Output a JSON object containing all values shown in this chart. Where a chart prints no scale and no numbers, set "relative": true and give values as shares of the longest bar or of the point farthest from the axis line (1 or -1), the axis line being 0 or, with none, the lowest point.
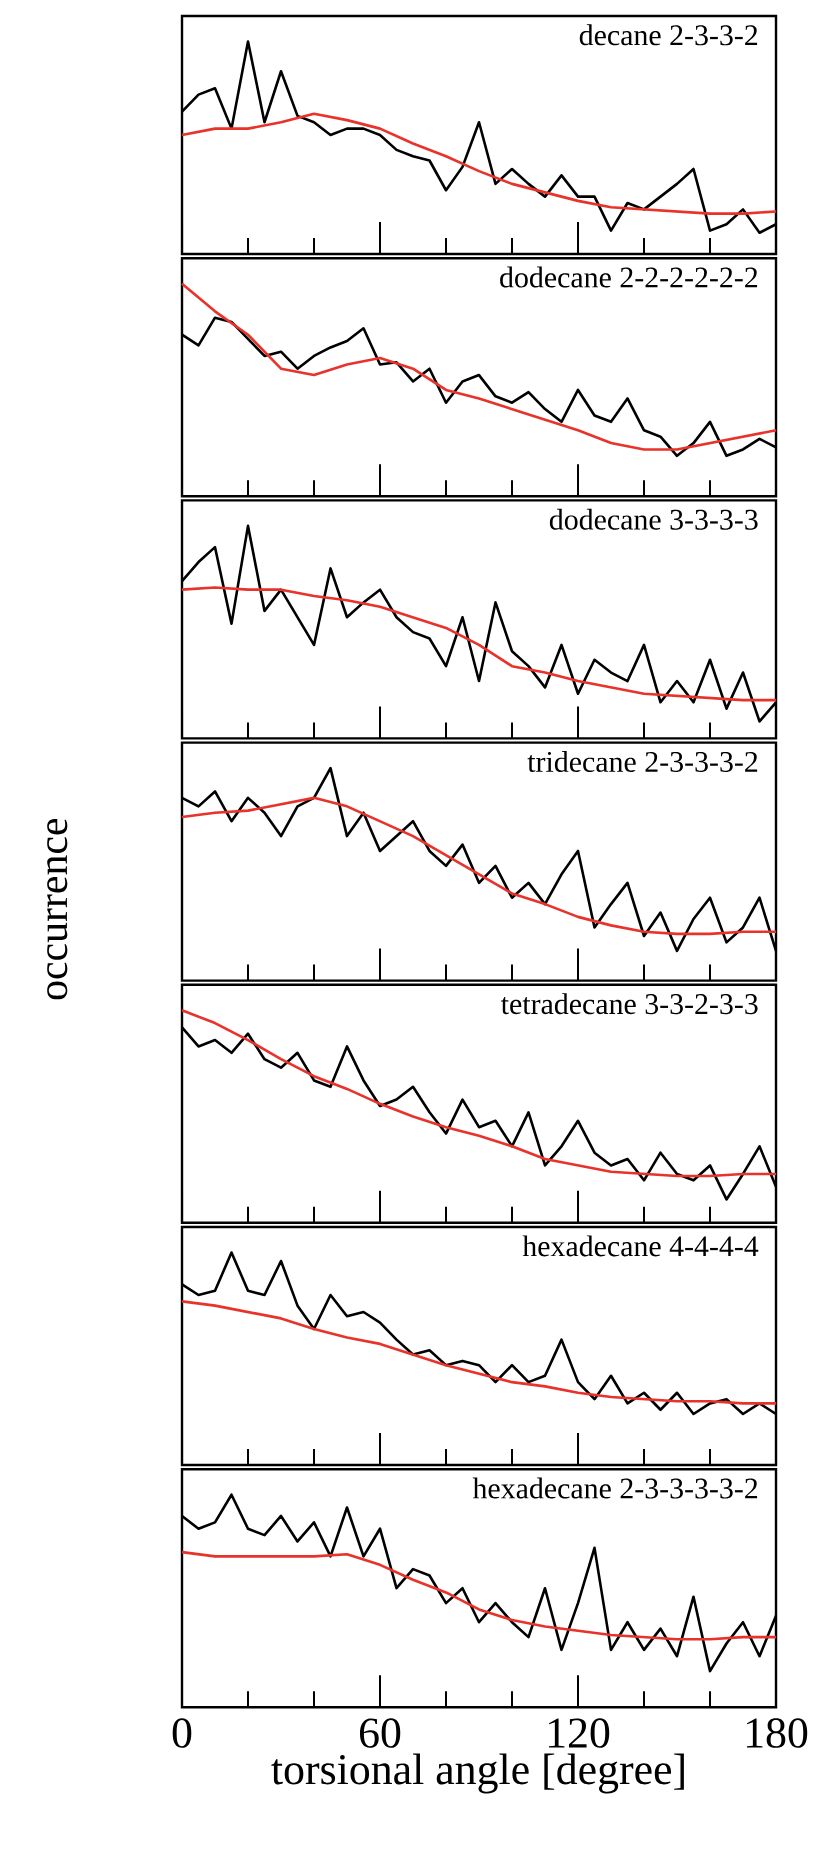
{
  "chart_data": [
    {
      "type": "line",
      "title": "decane 2-3-3-2",
      "relative": true,
      "xlim": [
        0,
        180
      ],
      "xticks": [
        0,
        {
          "value": 20,
          "label": null
        },
        {
          "value": 40,
          "label": null
        },
        60,
        {
          "value": 80,
          "label": null
        },
        {
          "value": 100,
          "label": null
        },
        120,
        {
          "value": 140,
          "label": null
        },
        {
          "value": 160,
          "label": null
        },
        180
      ],
      "tick_labels": false,
      "series": [
        {
          "color": "#000000",
          "x": [
            0,
            5,
            10,
            15,
            20,
            25,
            30,
            35,
            40,
            45,
            50,
            55,
            60,
            65,
            70,
            75,
            80,
            85,
            90,
            95,
            100,
            105,
            110,
            115,
            120,
            125,
            130,
            135,
            140,
            145,
            150,
            155,
            160,
            165,
            170,
            175,
            180
          ],
          "values": [
            0.67,
            0.75,
            0.78,
            0.59,
            1,
            0.62,
            0.86,
            0.65,
            0.62,
            0.56,
            0.59,
            0.59,
            0.56,
            0.49,
            0.46,
            0.44,
            0.3,
            0.41,
            0.62,
            0.33,
            0.4,
            0.33,
            0.27,
            0.37,
            0.27,
            0.27,
            0.11,
            0.24,
            0.21,
            0.27,
            0.33,
            0.4,
            0.11,
            0.14,
            0.21,
            0.1,
            0.14
          ]
        },
        {
          "color": "#e8322a",
          "x": [
            0,
            10,
            20,
            30,
            40,
            50,
            60,
            70,
            80,
            90,
            100,
            110,
            120,
            130,
            140,
            150,
            160,
            170,
            180
          ],
          "values": [
            0.56,
            0.59,
            0.59,
            0.62,
            0.66,
            0.63,
            0.59,
            0.52,
            0.46,
            0.39,
            0.33,
            0.29,
            0.25,
            0.22,
            0.21,
            0.2,
            0.19,
            0.19,
            0.2
          ]
        }
      ]
    },
    {
      "type": "line",
      "title": "dodecane 2-2-2-2-2-2",
      "relative": true,
      "xlim": [
        0,
        180
      ],
      "xticks": [
        0,
        {
          "value": 20,
          "label": null
        },
        {
          "value": 40,
          "label": null
        },
        60,
        {
          "value": 80,
          "label": null
        },
        {
          "value": 100,
          "label": null
        },
        120,
        {
          "value": 140,
          "label": null
        },
        {
          "value": 160,
          "label": null
        },
        180
      ],
      "tick_labels": false,
      "series": [
        {
          "color": "#000000",
          "x": [
            0,
            5,
            10,
            15,
            20,
            25,
            30,
            35,
            40,
            45,
            50,
            55,
            60,
            65,
            70,
            75,
            80,
            85,
            90,
            95,
            100,
            105,
            110,
            115,
            120,
            125,
            130,
            135,
            140,
            145,
            150,
            155,
            160,
            165,
            170,
            175,
            180
          ],
          "values": [
            0.76,
            0.71,
            0.84,
            0.82,
            0.74,
            0.66,
            0.68,
            0.6,
            0.66,
            0.7,
            0.73,
            0.79,
            0.62,
            0.63,
            0.54,
            0.6,
            0.44,
            0.54,
            0.57,
            0.47,
            0.44,
            0.49,
            0.41,
            0.35,
            0.5,
            0.38,
            0.35,
            0.46,
            0.31,
            0.28,
            0.19,
            0.25,
            0.35,
            0.19,
            0.22,
            0.27,
            0.23
          ]
        },
        {
          "color": "#e8322a",
          "x": [
            0,
            10,
            20,
            30,
            40,
            50,
            60,
            70,
            80,
            90,
            100,
            110,
            120,
            130,
            140,
            150,
            160,
            170,
            180
          ],
          "values": [
            1,
            0.87,
            0.76,
            0.6,
            0.57,
            0.62,
            0.65,
            0.6,
            0.5,
            0.46,
            0.41,
            0.36,
            0.31,
            0.25,
            0.22,
            0.22,
            0.25,
            0.28,
            0.31
          ]
        }
      ]
    },
    {
      "type": "line",
      "title": "dodecane 3-3-3-3",
      "relative": true,
      "xlim": [
        0,
        180
      ],
      "xticks": [
        0,
        {
          "value": 20,
          "label": null
        },
        {
          "value": 40,
          "label": null
        },
        60,
        {
          "value": 80,
          "label": null
        },
        {
          "value": 100,
          "label": null
        },
        120,
        {
          "value": 140,
          "label": null
        },
        {
          "value": 160,
          "label": null
        },
        180
      ],
      "tick_labels": false,
      "series": [
        {
          "color": "#000000",
          "x": [
            0,
            5,
            10,
            15,
            20,
            25,
            30,
            35,
            40,
            45,
            50,
            55,
            60,
            65,
            70,
            75,
            80,
            85,
            90,
            95,
            100,
            105,
            110,
            115,
            120,
            125,
            130,
            135,
            140,
            145,
            150,
            155,
            160,
            165,
            170,
            175,
            180
          ],
          "values": [
            0.74,
            0.83,
            0.9,
            0.54,
            1,
            0.6,
            0.7,
            0.57,
            0.44,
            0.8,
            0.57,
            0.64,
            0.7,
            0.57,
            0.5,
            0.47,
            0.34,
            0.57,
            0.27,
            0.64,
            0.41,
            0.34,
            0.24,
            0.44,
            0.21,
            0.37,
            0.31,
            0.27,
            0.44,
            0.17,
            0.27,
            0.17,
            0.37,
            0.14,
            0.31,
            0.08,
            0.17
          ]
        },
        {
          "color": "#e8322a",
          "x": [
            0,
            10,
            20,
            30,
            40,
            50,
            60,
            70,
            80,
            90,
            100,
            110,
            120,
            130,
            140,
            150,
            160,
            170,
            180
          ],
          "values": [
            0.7,
            0.71,
            0.7,
            0.7,
            0.67,
            0.65,
            0.62,
            0.57,
            0.52,
            0.44,
            0.34,
            0.31,
            0.27,
            0.24,
            0.21,
            0.2,
            0.19,
            0.18,
            0.18
          ]
        }
      ]
    },
    {
      "type": "line",
      "title": "tridecane 2-3-3-3-2",
      "ylabel": "occurrence",
      "relative": true,
      "xlim": [
        0,
        180
      ],
      "xticks": [
        0,
        {
          "value": 20,
          "label": null
        },
        {
          "value": 40,
          "label": null
        },
        60,
        {
          "value": 80,
          "label": null
        },
        {
          "value": 100,
          "label": null
        },
        120,
        {
          "value": 140,
          "label": null
        },
        {
          "value": 160,
          "label": null
        },
        180
      ],
      "tick_labels": false,
      "series": [
        {
          "color": "#000000",
          "x": [
            0,
            5,
            10,
            15,
            20,
            25,
            30,
            35,
            40,
            45,
            50,
            55,
            60,
            65,
            70,
            75,
            80,
            85,
            90,
            95,
            100,
            105,
            110,
            115,
            120,
            125,
            130,
            135,
            140,
            145,
            150,
            155,
            160,
            165,
            170,
            175,
            180
          ],
          "values": [
            0.86,
            0.82,
            0.89,
            0.75,
            0.86,
            0.79,
            0.68,
            0.82,
            0.86,
            1,
            0.68,
            0.79,
            0.61,
            0.68,
            0.75,
            0.61,
            0.54,
            0.64,
            0.46,
            0.54,
            0.39,
            0.46,
            0.36,
            0.5,
            0.61,
            0.25,
            0.36,
            0.46,
            0.21,
            0.32,
            0.14,
            0.29,
            0.39,
            0.18,
            0.25,
            0.39,
            0.14
          ]
        },
        {
          "color": "#e8322a",
          "x": [
            0,
            10,
            20,
            30,
            40,
            50,
            60,
            70,
            80,
            90,
            100,
            110,
            120,
            130,
            140,
            150,
            160,
            170,
            180
          ],
          "values": [
            0.77,
            0.79,
            0.8,
            0.83,
            0.86,
            0.82,
            0.75,
            0.68,
            0.59,
            0.5,
            0.41,
            0.36,
            0.3,
            0.26,
            0.23,
            0.22,
            0.22,
            0.23,
            0.23
          ]
        }
      ]
    },
    {
      "type": "line",
      "title": "tetradecane 3-3-2-3-3",
      "relative": true,
      "xlim": [
        0,
        180
      ],
      "xticks": [
        0,
        {
          "value": 20,
          "label": null
        },
        {
          "value": 40,
          "label": null
        },
        60,
        {
          "value": 80,
          "label": null
        },
        {
          "value": 100,
          "label": null
        },
        120,
        {
          "value": 140,
          "label": null
        },
        {
          "value": 160,
          "label": null
        },
        180
      ],
      "tick_labels": false,
      "series": [
        {
          "color": "#000000",
          "x": [
            0,
            5,
            10,
            15,
            20,
            25,
            30,
            35,
            40,
            45,
            50,
            55,
            60,
            65,
            70,
            75,
            80,
            85,
            90,
            95,
            100,
            105,
            110,
            115,
            120,
            125,
            130,
            135,
            140,
            145,
            150,
            155,
            160,
            165,
            170,
            175,
            180
          ],
          "values": [
            0.92,
            0.83,
            0.86,
            0.8,
            0.89,
            0.77,
            0.73,
            0.8,
            0.67,
            0.64,
            0.83,
            0.67,
            0.55,
            0.58,
            0.64,
            0.52,
            0.42,
            0.58,
            0.45,
            0.48,
            0.36,
            0.52,
            0.27,
            0.36,
            0.48,
            0.33,
            0.27,
            0.3,
            0.2,
            0.33,
            0.23,
            0.2,
            0.27,
            0.11,
            0.23,
            0.36,
            0.17
          ]
        },
        {
          "color": "#e8322a",
          "x": [
            0,
            10,
            20,
            30,
            40,
            50,
            60,
            70,
            80,
            90,
            100,
            110,
            120,
            130,
            140,
            150,
            160,
            170,
            180
          ],
          "values": [
            1,
            0.94,
            0.86,
            0.77,
            0.69,
            0.63,
            0.56,
            0.5,
            0.45,
            0.41,
            0.36,
            0.3,
            0.27,
            0.24,
            0.23,
            0.22,
            0.22,
            0.23,
            0.23
          ]
        }
      ]
    },
    {
      "type": "line",
      "title": "hexadecane 4-4-4-4",
      "relative": true,
      "xlim": [
        0,
        180
      ],
      "xticks": [
        0,
        {
          "value": 20,
          "label": null
        },
        {
          "value": 40,
          "label": null
        },
        60,
        {
          "value": 80,
          "label": null
        },
        {
          "value": 100,
          "label": null
        },
        120,
        {
          "value": 140,
          "label": null
        },
        {
          "value": 160,
          "label": null
        },
        180
      ],
      "tick_labels": false,
      "series": [
        {
          "color": "#000000",
          "x": [
            0,
            5,
            10,
            15,
            20,
            25,
            30,
            35,
            40,
            45,
            50,
            55,
            60,
            65,
            70,
            75,
            80,
            85,
            90,
            95,
            100,
            105,
            110,
            115,
            120,
            125,
            130,
            135,
            140,
            145,
            150,
            155,
            160,
            165,
            170,
            175,
            180
          ],
          "values": [
            0.85,
            0.8,
            0.82,
            1,
            0.82,
            0.8,
            0.96,
            0.75,
            0.64,
            0.8,
            0.7,
            0.72,
            0.67,
            0.59,
            0.52,
            0.54,
            0.47,
            0.49,
            0.47,
            0.39,
            0.47,
            0.39,
            0.42,
            0.59,
            0.39,
            0.31,
            0.42,
            0.29,
            0.34,
            0.26,
            0.34,
            0.24,
            0.29,
            0.31,
            0.24,
            0.29,
            0.24
          ]
        },
        {
          "color": "#e8322a",
          "x": [
            0,
            10,
            20,
            30,
            40,
            50,
            60,
            70,
            80,
            90,
            100,
            110,
            120,
            130,
            140,
            150,
            160,
            170,
            180
          ],
          "values": [
            0.77,
            0.75,
            0.72,
            0.69,
            0.64,
            0.6,
            0.57,
            0.52,
            0.47,
            0.43,
            0.39,
            0.37,
            0.34,
            0.32,
            0.31,
            0.3,
            0.3,
            0.29,
            0.29
          ]
        }
      ]
    },
    {
      "type": "line",
      "title": "hexadecane 2-3-3-3-3-2",
      "xlabel": "torsional angle [degree]",
      "relative": true,
      "xlim": [
        0,
        180
      ],
      "xticks": [
        0,
        {
          "value": 20,
          "label": null
        },
        {
          "value": 40,
          "label": null
        },
        60,
        {
          "value": 80,
          "label": null
        },
        {
          "value": 100,
          "label": null
        },
        120,
        {
          "value": 140,
          "label": null
        },
        {
          "value": 160,
          "label": null
        },
        180
      ],
      "tick_labels": "x",
      "series": [
        {
          "color": "#000000",
          "x": [
            0,
            5,
            10,
            15,
            20,
            25,
            30,
            35,
            40,
            45,
            50,
            55,
            60,
            65,
            70,
            75,
            80,
            85,
            90,
            95,
            100,
            105,
            110,
            115,
            120,
            125,
            130,
            135,
            140,
            145,
            150,
            155,
            160,
            165,
            170,
            175,
            180
          ],
          "values": [
            0.9,
            0.84,
            0.87,
            1,
            0.84,
            0.81,
            0.9,
            0.78,
            0.87,
            0.71,
            0.94,
            0.71,
            0.84,
            0.56,
            0.65,
            0.62,
            0.49,
            0.56,
            0.4,
            0.49,
            0.4,
            0.33,
            0.56,
            0.27,
            0.49,
            0.75,
            0.27,
            0.4,
            0.27,
            0.37,
            0.24,
            0.52,
            0.17,
            0.3,
            0.4,
            0.24,
            0.43
          ]
        },
        {
          "color": "#e8322a",
          "x": [
            0,
            10,
            20,
            30,
            40,
            50,
            60,
            70,
            80,
            90,
            100,
            110,
            120,
            130,
            140,
            150,
            160,
            170,
            180
          ],
          "values": [
            0.73,
            0.71,
            0.71,
            0.71,
            0.71,
            0.72,
            0.67,
            0.6,
            0.54,
            0.46,
            0.41,
            0.38,
            0.36,
            0.34,
            0.33,
            0.32,
            0.32,
            0.33,
            0.33
          ]
        }
      ]
    }
  ]
}
